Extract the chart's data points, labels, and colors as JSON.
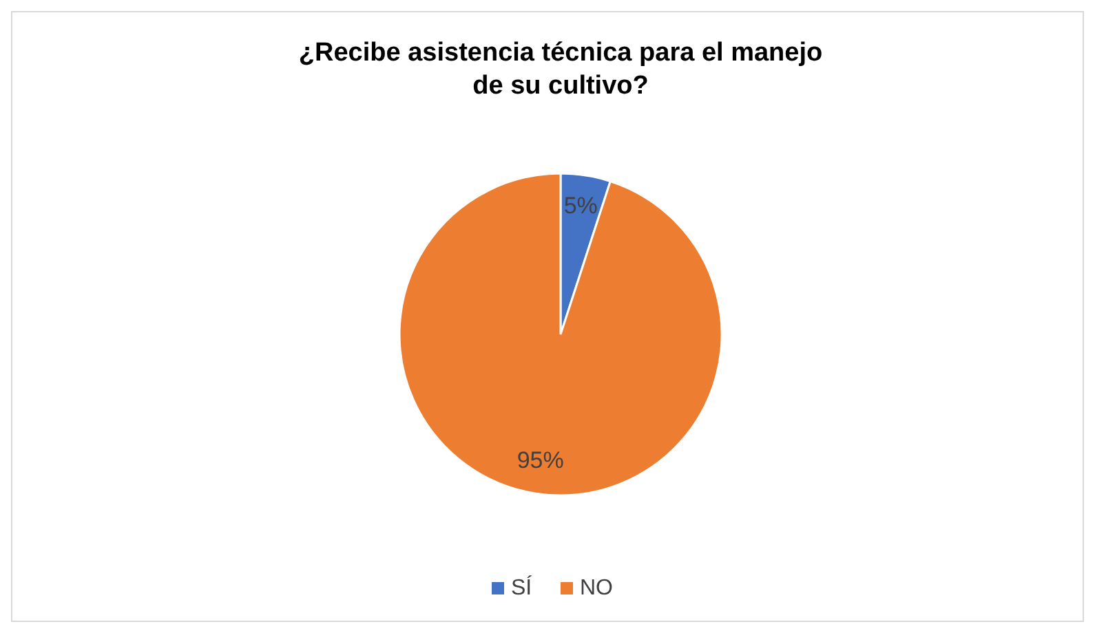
{
  "chart_data": {
    "type": "pie",
    "title": "¿Recibe asistencia técnica para el manejo de su cultivo?",
    "categories": [
      "SÍ",
      "NO"
    ],
    "values": [
      5,
      95
    ],
    "colors": [
      "#4472c4",
      "#ed7d31"
    ],
    "value_labels": [
      "5%",
      "95%"
    ],
    "legend": "bottom"
  }
}
